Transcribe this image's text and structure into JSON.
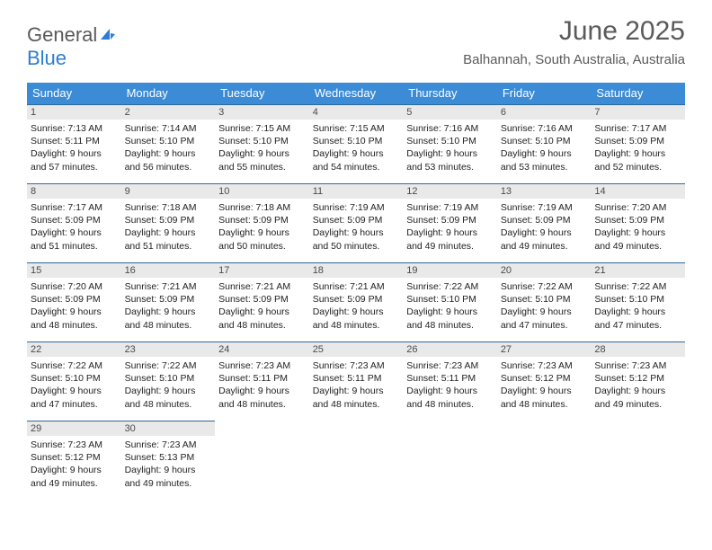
{
  "brand": {
    "general": "General",
    "blue": "Blue"
  },
  "title": "June 2025",
  "location": "Balhannah, South Australia, Australia",
  "colors": {
    "header_bg": "#3b8bd6",
    "header_text": "#ffffff",
    "day_bar_bg": "#e9e9e9",
    "day_bar_border": "#2d6aa0",
    "body_text": "#222222",
    "title_text": "#5a5a5a",
    "brand_blue": "#2d7dd2",
    "brand_gray": "#5a5a5a",
    "page_bg": "#ffffff"
  },
  "typography": {
    "title_fontsize": 30,
    "location_fontsize": 15,
    "dayhead_fontsize": 13,
    "daynum_fontsize": 11,
    "body_fontsize": 10.5
  },
  "weekdays": [
    "Sunday",
    "Monday",
    "Tuesday",
    "Wednesday",
    "Thursday",
    "Friday",
    "Saturday"
  ],
  "days": [
    {
      "n": 1,
      "sunrise": "7:13 AM",
      "sunset": "5:11 PM",
      "daylight": "9 hours and 57 minutes."
    },
    {
      "n": 2,
      "sunrise": "7:14 AM",
      "sunset": "5:10 PM",
      "daylight": "9 hours and 56 minutes."
    },
    {
      "n": 3,
      "sunrise": "7:15 AM",
      "sunset": "5:10 PM",
      "daylight": "9 hours and 55 minutes."
    },
    {
      "n": 4,
      "sunrise": "7:15 AM",
      "sunset": "5:10 PM",
      "daylight": "9 hours and 54 minutes."
    },
    {
      "n": 5,
      "sunrise": "7:16 AM",
      "sunset": "5:10 PM",
      "daylight": "9 hours and 53 minutes."
    },
    {
      "n": 6,
      "sunrise": "7:16 AM",
      "sunset": "5:10 PM",
      "daylight": "9 hours and 53 minutes."
    },
    {
      "n": 7,
      "sunrise": "7:17 AM",
      "sunset": "5:09 PM",
      "daylight": "9 hours and 52 minutes."
    },
    {
      "n": 8,
      "sunrise": "7:17 AM",
      "sunset": "5:09 PM",
      "daylight": "9 hours and 51 minutes."
    },
    {
      "n": 9,
      "sunrise": "7:18 AM",
      "sunset": "5:09 PM",
      "daylight": "9 hours and 51 minutes."
    },
    {
      "n": 10,
      "sunrise": "7:18 AM",
      "sunset": "5:09 PM",
      "daylight": "9 hours and 50 minutes."
    },
    {
      "n": 11,
      "sunrise": "7:19 AM",
      "sunset": "5:09 PM",
      "daylight": "9 hours and 50 minutes."
    },
    {
      "n": 12,
      "sunrise": "7:19 AM",
      "sunset": "5:09 PM",
      "daylight": "9 hours and 49 minutes."
    },
    {
      "n": 13,
      "sunrise": "7:19 AM",
      "sunset": "5:09 PM",
      "daylight": "9 hours and 49 minutes."
    },
    {
      "n": 14,
      "sunrise": "7:20 AM",
      "sunset": "5:09 PM",
      "daylight": "9 hours and 49 minutes."
    },
    {
      "n": 15,
      "sunrise": "7:20 AM",
      "sunset": "5:09 PM",
      "daylight": "9 hours and 48 minutes."
    },
    {
      "n": 16,
      "sunrise": "7:21 AM",
      "sunset": "5:09 PM",
      "daylight": "9 hours and 48 minutes."
    },
    {
      "n": 17,
      "sunrise": "7:21 AM",
      "sunset": "5:09 PM",
      "daylight": "9 hours and 48 minutes."
    },
    {
      "n": 18,
      "sunrise": "7:21 AM",
      "sunset": "5:09 PM",
      "daylight": "9 hours and 48 minutes."
    },
    {
      "n": 19,
      "sunrise": "7:22 AM",
      "sunset": "5:10 PM",
      "daylight": "9 hours and 48 minutes."
    },
    {
      "n": 20,
      "sunrise": "7:22 AM",
      "sunset": "5:10 PM",
      "daylight": "9 hours and 47 minutes."
    },
    {
      "n": 21,
      "sunrise": "7:22 AM",
      "sunset": "5:10 PM",
      "daylight": "9 hours and 47 minutes."
    },
    {
      "n": 22,
      "sunrise": "7:22 AM",
      "sunset": "5:10 PM",
      "daylight": "9 hours and 47 minutes."
    },
    {
      "n": 23,
      "sunrise": "7:22 AM",
      "sunset": "5:10 PM",
      "daylight": "9 hours and 48 minutes."
    },
    {
      "n": 24,
      "sunrise": "7:23 AM",
      "sunset": "5:11 PM",
      "daylight": "9 hours and 48 minutes."
    },
    {
      "n": 25,
      "sunrise": "7:23 AM",
      "sunset": "5:11 PM",
      "daylight": "9 hours and 48 minutes."
    },
    {
      "n": 26,
      "sunrise": "7:23 AM",
      "sunset": "5:11 PM",
      "daylight": "9 hours and 48 minutes."
    },
    {
      "n": 27,
      "sunrise": "7:23 AM",
      "sunset": "5:12 PM",
      "daylight": "9 hours and 48 minutes."
    },
    {
      "n": 28,
      "sunrise": "7:23 AM",
      "sunset": "5:12 PM",
      "daylight": "9 hours and 49 minutes."
    },
    {
      "n": 29,
      "sunrise": "7:23 AM",
      "sunset": "5:12 PM",
      "daylight": "9 hours and 49 minutes."
    },
    {
      "n": 30,
      "sunrise": "7:23 AM",
      "sunset": "5:13 PM",
      "daylight": "9 hours and 49 minutes."
    }
  ],
  "labels": {
    "sunrise": "Sunrise:",
    "sunset": "Sunset:",
    "daylight": "Daylight:"
  },
  "layout": {
    "columns": 7,
    "rows": 5,
    "start_weekday": 0
  }
}
